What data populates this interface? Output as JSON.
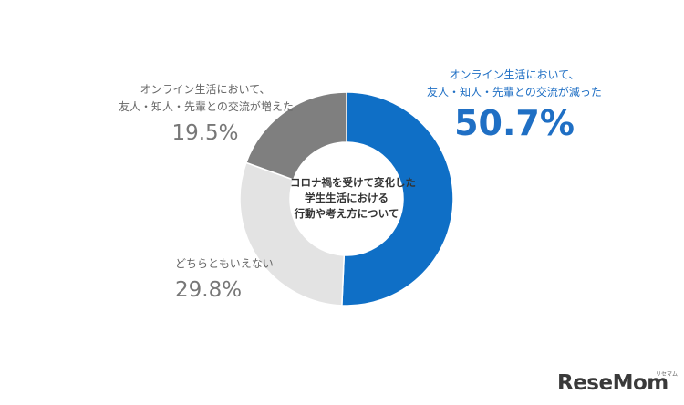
{
  "chart_data": {
    "type": "pie",
    "title": "",
    "center_label": [
      "コロナ禍を受けて変化した",
      "学生生活における",
      "行動や考え方について"
    ],
    "slices": [
      {
        "label_lines": [
          "オンライン生活において、",
          "友人・知人・先輩との交流が減った"
        ],
        "value": 50.7,
        "value_label": "50.7%",
        "color": "#0f6fc6"
      },
      {
        "label_lines": [
          "どちらともいえない"
        ],
        "value": 29.8,
        "value_label": "29.8%",
        "color": "#e3e3e3"
      },
      {
        "label_lines": [
          "オンライン生活において、",
          "友人・知人・先輩との交流が増えた"
        ],
        "value": 19.5,
        "value_label": "19.5%",
        "color": "#7f7f7f"
      }
    ]
  },
  "logo": {
    "text": "ReseMom",
    "small": "リセマム"
  }
}
